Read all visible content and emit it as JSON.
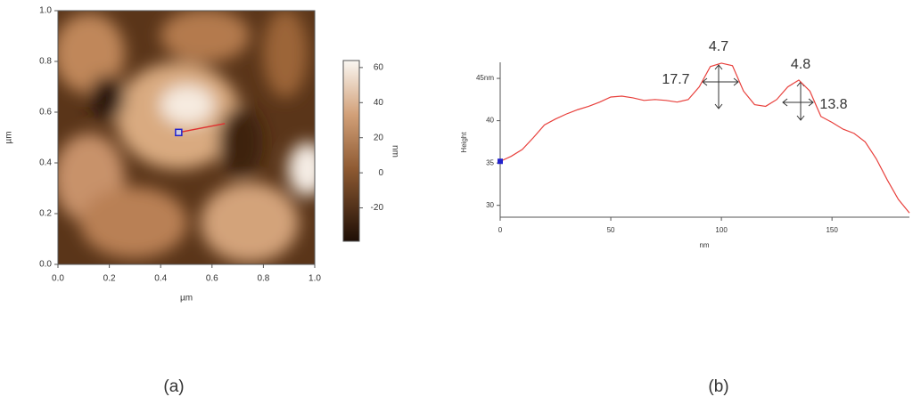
{
  "chart_data": [
    {
      "type": "image",
      "xlabel": "µm",
      "ylabel": "µm",
      "xlim": [
        0,
        1
      ],
      "ylim": [
        0,
        1
      ],
      "xticks": [
        {
          "value": 0,
          "label": "0.0"
        },
        {
          "value": 0.2,
          "label": "0.2"
        },
        {
          "value": 0.4,
          "label": "0.4"
        },
        {
          "value": 0.6,
          "label": "0.6"
        },
        {
          "value": 0.8,
          "label": "0.8"
        },
        {
          "value": 1,
          "label": "1.0"
        }
      ],
      "yticks": [
        {
          "value": 0,
          "label": "0.0"
        },
        {
          "value": 0.2,
          "label": "0.2"
        },
        {
          "value": 0.4,
          "label": "0.4"
        },
        {
          "value": 0.6,
          "label": "0.6"
        },
        {
          "value": 0.8,
          "label": "0.8"
        },
        {
          "value": 1,
          "label": "1.0"
        }
      ],
      "profile_line": {
        "color": "#e03030",
        "x": [
          0.47,
          0.65
        ],
        "y": [
          0.52,
          0.555
        ]
      },
      "colorbar": {
        "label": "nm",
        "lim": [
          -39,
          64
        ],
        "ticks": [
          60,
          40,
          20,
          0,
          -20
        ]
      },
      "panel_label": "(a)"
    },
    {
      "type": "line",
      "xlabel": "nm",
      "ylabel": "Height",
      "xlim": [
        0,
        185
      ],
      "ylim": [
        28.6,
        46.9
      ],
      "xticks": [
        0,
        50,
        100,
        150
      ],
      "yticks": [
        30,
        35,
        40,
        {
          "value": 45,
          "label": "45nm"
        }
      ],
      "x": [
        0,
        5,
        10,
        15,
        20,
        25,
        30,
        35,
        40,
        45,
        50,
        55,
        60,
        65,
        70,
        75,
        80,
        85,
        90,
        95,
        100,
        105,
        110,
        115,
        120,
        125,
        130,
        135,
        140,
        145,
        150,
        155,
        160,
        165,
        170,
        175,
        180,
        185
      ],
      "series": [
        {
          "color": "#e8403c",
          "values": [
            35.2,
            35.8,
            36.6,
            38,
            39.5,
            40.2,
            40.8,
            41.3,
            41.7,
            42.2,
            42.8,
            42.9,
            42.7,
            42.4,
            42.5,
            42.4,
            42.2,
            42.5,
            44,
            46.4,
            46.8,
            46.5,
            43.5,
            41.9,
            41.7,
            42.5,
            44,
            44.8,
            43.5,
            40.5,
            39.8,
            39,
            38.5,
            37.5,
            35.5,
            33,
            30.7,
            29.1
          ]
        }
      ],
      "annotations": [
        "4.7",
        "17.7",
        "4.8",
        "13.8"
      ],
      "panel_label": "(b)"
    }
  ]
}
